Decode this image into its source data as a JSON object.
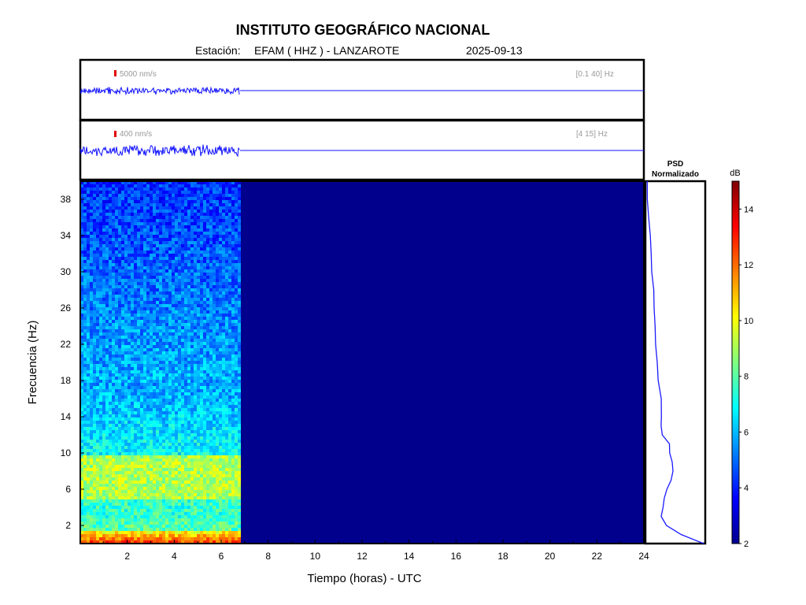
{
  "header": {
    "title": "INSTITUTO GEOGRÁFICO NACIONAL",
    "station_label": "Estación:",
    "station": "EFAM ( HHZ ) - LANZAROTE",
    "date": "2025-09-13"
  },
  "chart_data": {
    "type": "heatmap",
    "xlabel": "Tiempo (horas) - UTC",
    "ylabel": "Frecuencia  (Hz)",
    "xlim": [
      0,
      24
    ],
    "ylim": [
      0,
      40
    ],
    "xticks": [
      2,
      4,
      6,
      8,
      10,
      12,
      14,
      16,
      18,
      20,
      22,
      24
    ],
    "yticks": [
      2,
      6,
      10,
      14,
      18,
      22,
      26,
      30,
      34,
      38
    ],
    "data_end_hour": 6.8,
    "traces": [
      {
        "name": "trace-broadband",
        "scale_label": "5000 nm/s",
        "band_label": "[0.1 40] Hz"
      },
      {
        "name": "trace-filtered",
        "scale_label": "400 nm/s",
        "band_label": "[4 15] Hz"
      }
    ],
    "psd": {
      "title_line1": "PSD",
      "title_line2": "Normalizado",
      "freq": [
        0,
        1,
        2,
        3,
        4,
        5,
        6,
        7,
        8,
        9,
        10,
        11,
        12,
        13,
        14,
        16,
        18,
        20,
        22,
        24,
        26,
        28,
        30,
        32,
        34,
        36,
        38,
        40
      ],
      "value": [
        1.0,
        0.6,
        0.35,
        0.28,
        0.3,
        0.33,
        0.38,
        0.45,
        0.47,
        0.46,
        0.42,
        0.4,
        0.3,
        0.28,
        0.28,
        0.26,
        0.22,
        0.2,
        0.18,
        0.16,
        0.14,
        0.13,
        0.12,
        0.1,
        0.08,
        0.06,
        0.04,
        0.02
      ]
    },
    "colorbar": {
      "unit": "dB",
      "min": 2,
      "max": 15,
      "ticks": [
        2,
        4,
        6,
        8,
        10,
        12,
        14
      ],
      "colormap": "jet"
    }
  }
}
